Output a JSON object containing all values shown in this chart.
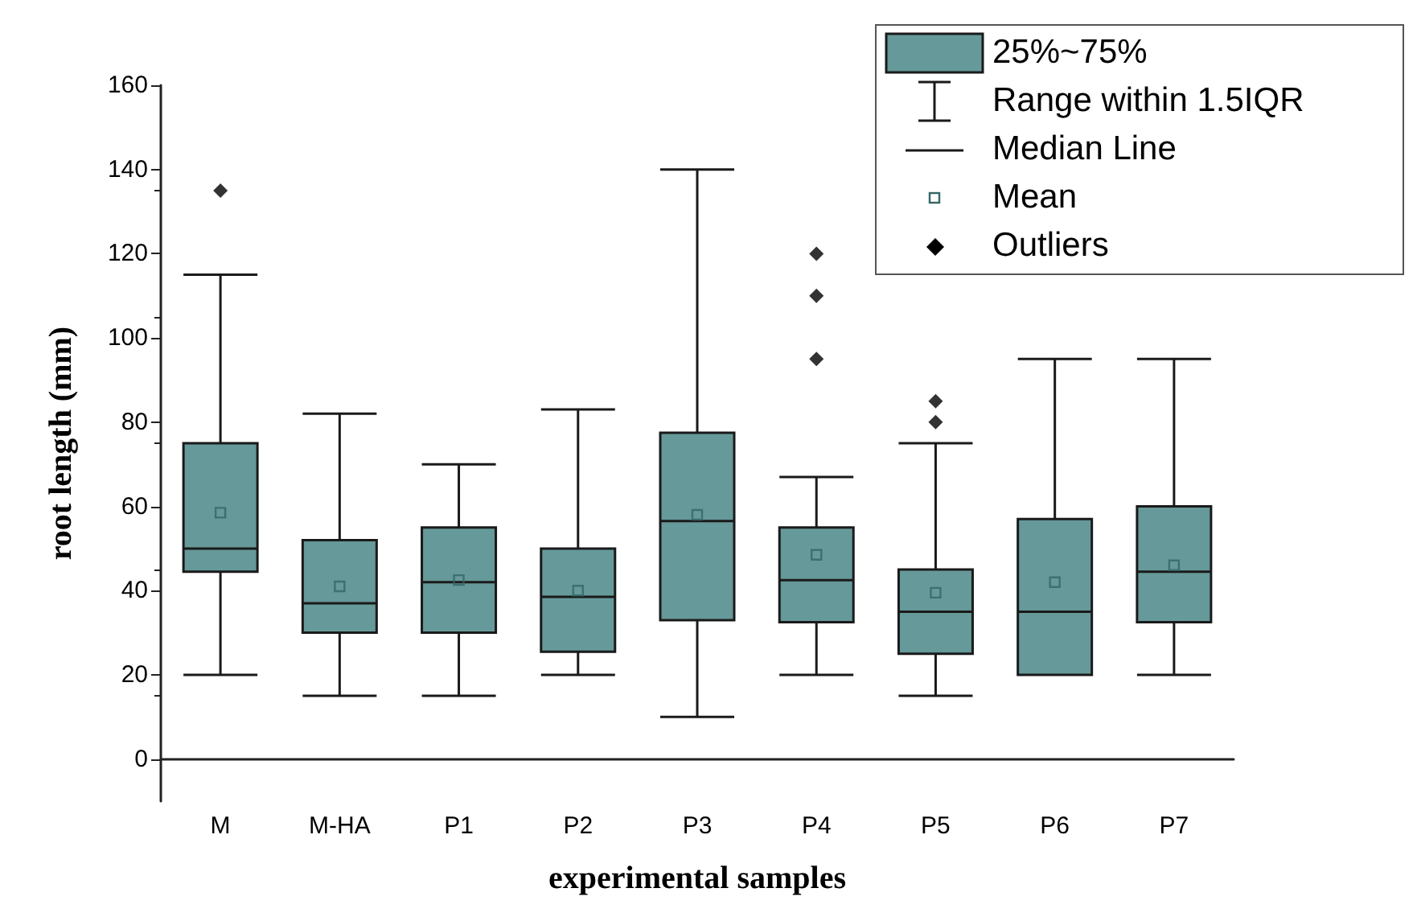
{
  "chart_data": {
    "type": "box",
    "xlabel": "experimental samples",
    "ylabel": "root length (mm)",
    "categories": [
      "M",
      "M-HA",
      "P1",
      "P2",
      "P3",
      "P4",
      "P5",
      "P6",
      "P7"
    ],
    "ylim": [
      -10,
      160
    ],
    "yticks": [
      0,
      20,
      40,
      60,
      80,
      100,
      120,
      140,
      160
    ],
    "grid": false,
    "legend": "top right",
    "annotations": [
      "Range within 1.5IQR",
      "Median Line"
    ],
    "series": [
      {
        "name": "25%~75%",
        "color": "#669999",
        "boxes": [
          {
            "low": 20,
            "q1": 44.5,
            "median": 50,
            "q3": 75,
            "high": 115
          },
          {
            "low": 15,
            "q1": 30,
            "median": 37,
            "q3": 52,
            "high": 82
          },
          {
            "low": 15,
            "q1": 30,
            "median": 42,
            "q3": 55,
            "high": 70
          },
          {
            "low": 20,
            "q1": 25.5,
            "median": 38.5,
            "q3": 50,
            "high": 83
          },
          {
            "low": 10,
            "q1": 33,
            "median": 56.5,
            "q3": 77.5,
            "high": 140
          },
          {
            "low": 20,
            "q1": 32.5,
            "median": 42.5,
            "q3": 55,
            "high": 67
          },
          {
            "low": 15,
            "q1": 25,
            "median": 35,
            "q3": 45,
            "high": 75
          },
          {
            "low": 20,
            "q1": 20,
            "median": 35,
            "q3": 57,
            "high": 95
          },
          {
            "low": 20,
            "q1": 32.5,
            "median": 44.5,
            "q3": 60,
            "high": 95
          }
        ]
      },
      {
        "name": "Mean",
        "type": "scatter",
        "marker": "square",
        "color": "#336666",
        "x": [
          "M",
          "M-HA",
          "P1",
          "P2",
          "P3",
          "P4",
          "P5",
          "P6",
          "P7"
        ],
        "values": [
          58.5,
          41,
          42.5,
          40,
          58,
          48.5,
          39.5,
          42,
          46
        ]
      },
      {
        "name": "Outliers",
        "type": "scatter",
        "marker": "diamond",
        "color": "#000000",
        "x": [
          "M",
          "P4",
          "P4",
          "P4",
          "P5",
          "P5"
        ],
        "values": [
          135,
          95,
          110,
          120,
          80,
          85
        ]
      }
    ]
  }
}
